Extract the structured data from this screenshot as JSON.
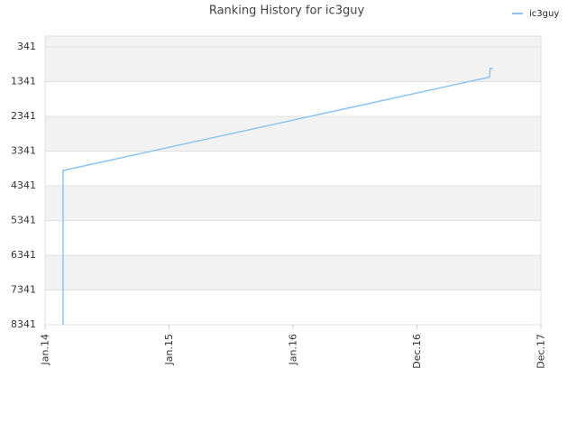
{
  "chart_data": {
    "type": "line",
    "title": "Ranking History for ic3guy",
    "x": [
      0.145,
      0.145,
      3.585,
      3.59,
      3.615
    ],
    "series": [
      {
        "name": "ic3guy",
        "color": "#8cc4f2",
        "values": [
          8341,
          3900,
          1210,
          960,
          960
        ]
      }
    ],
    "xlim": [
      0,
      4
    ],
    "xticks": [
      {
        "value": 0,
        "label": "Jan.14"
      },
      {
        "value": 1,
        "label": "Jan.15"
      },
      {
        "value": 2,
        "label": "Jan.16"
      },
      {
        "value": 3,
        "label": "Dec.16"
      },
      {
        "value": 4,
        "label": "Dec.17"
      }
    ],
    "ylim": [
      8341,
      29
    ],
    "yticks": [
      341,
      1341,
      2341,
      3341,
      4341,
      5341,
      6341,
      7341,
      8341
    ],
    "grid": true,
    "legend": "top-right"
  }
}
